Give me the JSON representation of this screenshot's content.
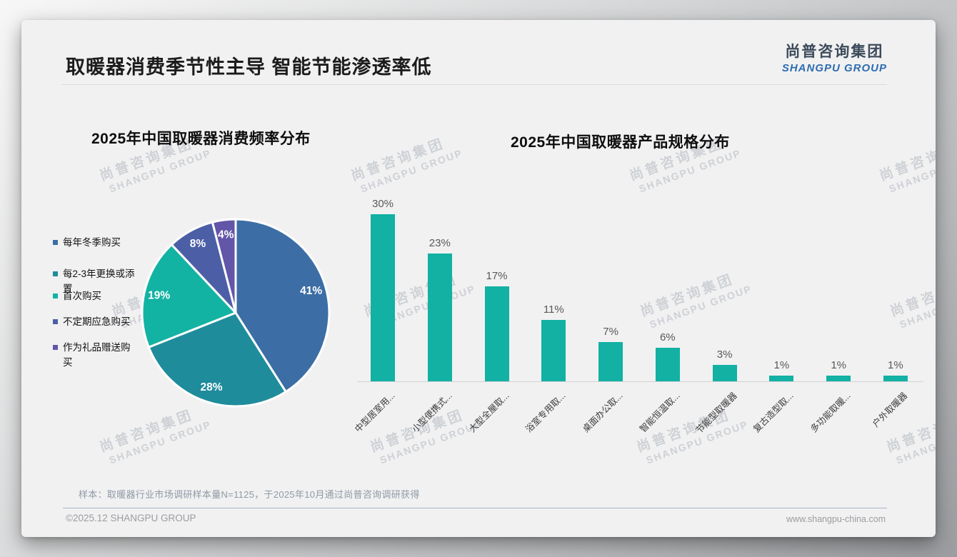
{
  "page": {
    "title": "取暖器消费季节性主导 智能节能渗透率低",
    "logo": {
      "cn": "尚普咨询集团",
      "en": "SHANGPU GROUP"
    },
    "watermark": {
      "cn": "尚普咨询集团",
      "en": "SHANGPU GROUP"
    },
    "source_note": "样本：取暖器行业市场调研样本量N=1125，于2025年10月通过尚普咨询调研获得",
    "footer_left": "©2025.12 SHANGPU GROUP",
    "footer_right": "www.shangpu-china.com"
  },
  "chart_data": [
    {
      "type": "pie",
      "title": "2025年中国取暖器消费频率分布",
      "labels": [
        "每年冬季购买",
        "每2-3年更换或添置",
        "首次购买",
        "不定期应急购买",
        "作为礼品赠送购买"
      ],
      "values": [
        41,
        28,
        19,
        8,
        4
      ],
      "value_labels": [
        "41%",
        "28%",
        "19%",
        "8%",
        "4%"
      ],
      "colors": [
        "#3C6EA5",
        "#1F8C9C",
        "#13B3A3",
        "#4C5FA6",
        "#6355A7"
      ],
      "legend_position": "left",
      "start_angle": "12-oclock",
      "direction": "clockwise",
      "slice_border_color": "#ffffff",
      "label_color": "#ffffff"
    },
    {
      "type": "bar",
      "title": "2025年中国取暖器产品规格分布",
      "categories": [
        "中型居室用...",
        "小型便携式...",
        "大型全屋取...",
        "浴室专用取...",
        "桌面办公取...",
        "智能恒温取...",
        "节能型取暖器",
        "复古造型取...",
        "多功能取暖...",
        "户外取暖器"
      ],
      "values": [
        30,
        23,
        17,
        11,
        7,
        6,
        3,
        1,
        1,
        1
      ],
      "value_labels": [
        "30%",
        "23%",
        "17%",
        "11%",
        "7%",
        "6%",
        "3%",
        "1%",
        "1%",
        "1%"
      ],
      "bar_color": "#12B1A4",
      "value_label_color": "#595959",
      "ylim": [
        0,
        32
      ],
      "grid": false,
      "x_label_rotation_deg": -45,
      "xlabel": "",
      "ylabel": ""
    }
  ]
}
